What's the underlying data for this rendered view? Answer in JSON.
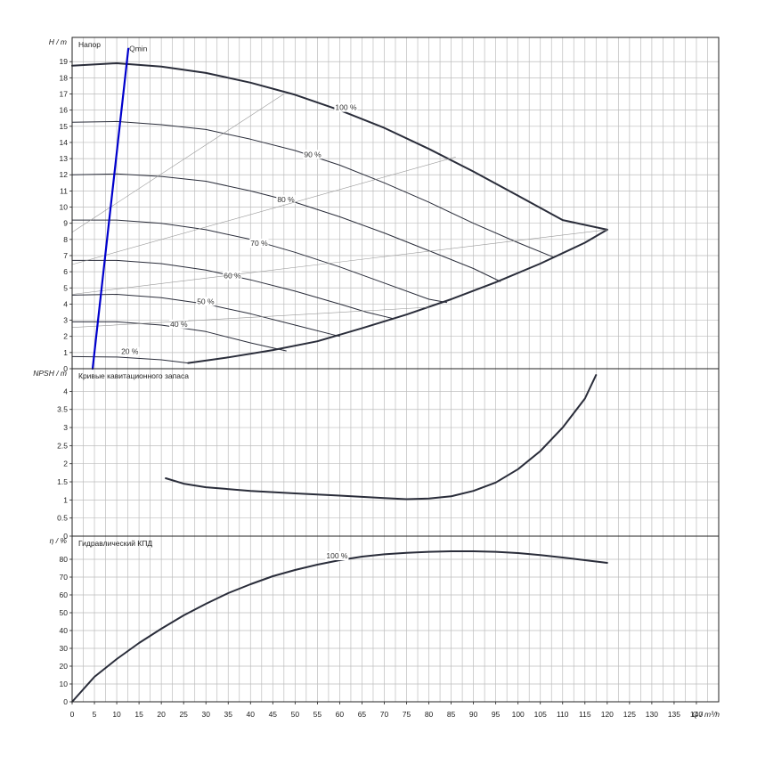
{
  "chart_data": [
    {
      "id": "head",
      "type": "line",
      "title": "Напор",
      "ylabel": "H / m",
      "xlim": [
        0,
        145
      ],
      "ylim": [
        0,
        20.5
      ],
      "yticks": [
        0,
        1,
        2,
        3,
        4,
        5,
        6,
        7,
        8,
        9,
        10,
        11,
        12,
        13,
        14,
        15,
        16,
        17,
        18,
        19
      ],
      "grid": true,
      "series": [
        {
          "name": "100 %",
          "label_at": [
            59,
            16.0
          ],
          "width": 2,
          "points": [
            [
              0,
              18.75
            ],
            [
              10,
              18.9
            ],
            [
              20,
              18.7
            ],
            [
              30,
              18.3
            ],
            [
              40,
              17.7
            ],
            [
              50,
              16.95
            ],
            [
              60,
              16.0
            ],
            [
              70,
              14.9
            ],
            [
              80,
              13.6
            ],
            [
              90,
              12.2
            ],
            [
              100,
              10.7
            ],
            [
              110,
              9.2
            ],
            [
              120,
              8.6
            ]
          ]
        },
        {
          "name": "90 %",
          "label_at": [
            52,
            13.1
          ],
          "width": 1,
          "points": [
            [
              0,
              15.25
            ],
            [
              10,
              15.3
            ],
            [
              20,
              15.1
            ],
            [
              30,
              14.8
            ],
            [
              40,
              14.2
            ],
            [
              50,
              13.5
            ],
            [
              60,
              12.6
            ],
            [
              70,
              11.5
            ],
            [
              80,
              10.3
            ],
            [
              90,
              9.0
            ],
            [
              100,
              7.8
            ],
            [
              108,
              6.9
            ]
          ]
        },
        {
          "name": "80 %",
          "label_at": [
            46,
            10.3
          ],
          "width": 1,
          "points": [
            [
              0,
              12.0
            ],
            [
              10,
              12.05
            ],
            [
              20,
              11.9
            ],
            [
              30,
              11.6
            ],
            [
              40,
              11.0
            ],
            [
              50,
              10.3
            ],
            [
              60,
              9.4
            ],
            [
              70,
              8.4
            ],
            [
              80,
              7.3
            ],
            [
              90,
              6.2
            ],
            [
              96,
              5.4
            ]
          ]
        },
        {
          "name": "70 %",
          "label_at": [
            40,
            7.6
          ],
          "width": 1,
          "points": [
            [
              0,
              9.2
            ],
            [
              10,
              9.2
            ],
            [
              20,
              9.0
            ],
            [
              30,
              8.6
            ],
            [
              40,
              8.0
            ],
            [
              50,
              7.2
            ],
            [
              60,
              6.3
            ],
            [
              70,
              5.3
            ],
            [
              80,
              4.3
            ],
            [
              84,
              4.1
            ]
          ]
        },
        {
          "name": "60 %",
          "label_at": [
            34,
            5.6
          ],
          "width": 1,
          "points": [
            [
              0,
              6.7
            ],
            [
              10,
              6.7
            ],
            [
              20,
              6.5
            ],
            [
              30,
              6.1
            ],
            [
              40,
              5.5
            ],
            [
              50,
              4.8
            ],
            [
              60,
              4.0
            ],
            [
              66,
              3.5
            ],
            [
              72,
              3.1
            ]
          ]
        },
        {
          "name": "50 %",
          "label_at": [
            28,
            4.0
          ],
          "width": 1,
          "points": [
            [
              0,
              4.55
            ],
            [
              10,
              4.6
            ],
            [
              20,
              4.4
            ],
            [
              30,
              4.0
            ],
            [
              40,
              3.4
            ],
            [
              50,
              2.7
            ],
            [
              60,
              2.0
            ]
          ]
        },
        {
          "name": "40 %",
          "label_at": [
            22,
            2.6
          ],
          "width": 1,
          "points": [
            [
              0,
              2.9
            ],
            [
              10,
              2.9
            ],
            [
              20,
              2.7
            ],
            [
              30,
              2.3
            ],
            [
              40,
              1.6
            ],
            [
              48,
              1.1
            ]
          ]
        },
        {
          "name": "20 %",
          "label_at": [
            11,
            0.9
          ],
          "width": 1,
          "points": [
            [
              0,
              0.75
            ],
            [
              10,
              0.72
            ],
            [
              20,
              0.55
            ],
            [
              26,
              0.35
            ]
          ]
        },
        {
          "name": "",
          "width": 2,
          "points": [
            [
              26,
              0.35
            ],
            [
              35,
              0.7
            ],
            [
              45,
              1.15
            ],
            [
              55,
              1.7
            ],
            [
              65,
              2.5
            ],
            [
              75,
              3.35
            ],
            [
              85,
              4.3
            ],
            [
              95,
              5.35
            ],
            [
              105,
              6.5
            ],
            [
              115,
              7.8
            ],
            [
              120,
              8.6
            ]
          ]
        },
        {
          "name": "",
          "color": "#999999",
          "width": 0.6,
          "points": [
            [
              0,
              8.45
            ],
            [
              47.5,
              17.0
            ]
          ]
        },
        {
          "name": "",
          "color": "#999999",
          "width": 0.6,
          "points": [
            [
              0,
              6.45
            ],
            [
              86,
              13.1
            ]
          ]
        },
        {
          "name": "",
          "color": "#999999",
          "width": 0.6,
          "points": [
            [
              0,
              4.6
            ],
            [
              120,
              8.6
            ]
          ]
        },
        {
          "name": "",
          "color": "#999999",
          "width": 0.6,
          "points": [
            [
              0,
              2.55
            ],
            [
              80,
              3.8
            ]
          ]
        },
        {
          "name": "Qmin",
          "label_at": [
            12.8,
            19.65
          ],
          "color": "#0000cc",
          "width": 2.2,
          "points": [
            [
              4.6,
              0
            ],
            [
              12.6,
              19.8
            ]
          ]
        }
      ]
    },
    {
      "id": "npsh",
      "type": "line",
      "title": "Кривые кавитационного запаса",
      "ylabel": "NPSH / m",
      "xlim": [
        0,
        145
      ],
      "ylim": [
        0,
        4.625
      ],
      "yticks": [
        0,
        0.5,
        1,
        1.5,
        2,
        2.5,
        3,
        3.5,
        4
      ],
      "grid": true,
      "series": [
        {
          "name": "",
          "width": 2,
          "points": [
            [
              21,
              1.6
            ],
            [
              25,
              1.45
            ],
            [
              30,
              1.35
            ],
            [
              40,
              1.25
            ],
            [
              50,
              1.18
            ],
            [
              60,
              1.12
            ],
            [
              70,
              1.05
            ],
            [
              75,
              1.02
            ],
            [
              80,
              1.04
            ],
            [
              85,
              1.1
            ],
            [
              90,
              1.25
            ],
            [
              95,
              1.48
            ],
            [
              100,
              1.85
            ],
            [
              105,
              2.35
            ],
            [
              110,
              3.0
            ],
            [
              115,
              3.8
            ],
            [
              117.5,
              4.45
            ]
          ]
        }
      ]
    },
    {
      "id": "eff",
      "type": "line",
      "title": "Гидравлический КПД",
      "ylabel": "η / %",
      "xlim": [
        0,
        145
      ],
      "ylim": [
        0,
        93
      ],
      "yticks": [
        0,
        10,
        20,
        30,
        40,
        50,
        60,
        70,
        80
      ],
      "grid": true,
      "series": [
        {
          "name": "100 %",
          "label_at": [
            57,
            80.5
          ],
          "width": 2,
          "points": [
            [
              0,
              0
            ],
            [
              5,
              14
            ],
            [
              10,
              24
            ],
            [
              15,
              33
            ],
            [
              20,
              41
            ],
            [
              25,
              48.5
            ],
            [
              30,
              55
            ],
            [
              35,
              61
            ],
            [
              40,
              66
            ],
            [
              45,
              70.5
            ],
            [
              50,
              74
            ],
            [
              55,
              77
            ],
            [
              60,
              79.5
            ],
            [
              65,
              81.5
            ],
            [
              70,
              82.8
            ],
            [
              75,
              83.6
            ],
            [
              80,
              84.2
            ],
            [
              85,
              84.5
            ],
            [
              90,
              84.5
            ],
            [
              95,
              84.2
            ],
            [
              100,
              83.5
            ],
            [
              105,
              82.4
            ],
            [
              110,
              81
            ],
            [
              115,
              79.5
            ],
            [
              120,
              78
            ]
          ]
        }
      ]
    }
  ],
  "x_axis": {
    "label": "Q / m³/h",
    "ticks": [
      0,
      5,
      10,
      15,
      20,
      25,
      30,
      35,
      40,
      45,
      50,
      55,
      60,
      65,
      70,
      75,
      80,
      85,
      90,
      95,
      100,
      105,
      110,
      115,
      120,
      125,
      130,
      135,
      140
    ]
  },
  "colors": {
    "curve": "#2a2d3a",
    "grid": "#bdbdbd",
    "frame": "#222222"
  }
}
